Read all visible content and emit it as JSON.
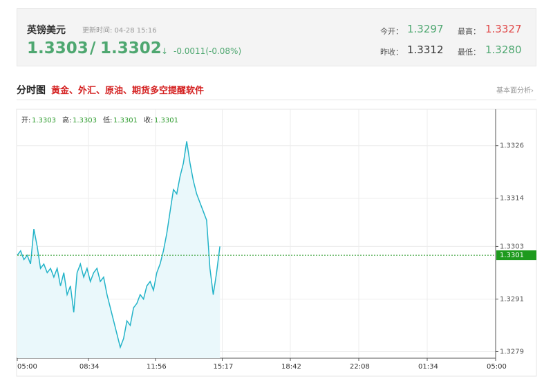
{
  "header": {
    "name": "英镑美元",
    "update_time": "更新时间: 04-28 15:16",
    "bid": "1.3303",
    "slash": "/",
    "ask": "1.3302",
    "arrow": "↓",
    "change": "-0.0011(-0.08%)",
    "stats": [
      {
        "label": "今开：",
        "value": "1.3297"
      },
      {
        "label": "最高：",
        "value": "1.3327"
      },
      {
        "label": "昨收：",
        "value": "1.3312"
      },
      {
        "label": "最低：",
        "value": "1.3280"
      }
    ]
  },
  "tabs": {
    "title": "分时图",
    "promo": "黄金、外汇、原油、期货多空提醒软件",
    "link": "基本面分析›"
  },
  "chart_data": {
    "type": "line",
    "ohlc": [
      {
        "label": "开:",
        "value": 1.3303
      },
      {
        "label": "高:",
        "value": 1.3303
      },
      {
        "label": "低:",
        "value": 1.3301
      },
      {
        "label": "收:",
        "value": 1.3301
      }
    ],
    "x": [
      "05:00",
      "05:10",
      "05:20",
      "05:30",
      "05:40",
      "05:50",
      "06:00",
      "06:10",
      "06:20",
      "06:30",
      "06:40",
      "06:50",
      "07:00",
      "07:10",
      "07:20",
      "07:30",
      "07:40",
      "07:50",
      "08:00",
      "08:10",
      "08:20",
      "08:30",
      "08:40",
      "08:50",
      "09:00",
      "09:10",
      "09:20",
      "09:30",
      "09:40",
      "09:50",
      "10:00",
      "10:10",
      "10:20",
      "10:30",
      "10:40",
      "10:50",
      "11:00",
      "11:10",
      "11:20",
      "11:30",
      "11:40",
      "11:50",
      "12:00",
      "12:10",
      "12:20",
      "12:30",
      "12:40",
      "12:50",
      "13:00",
      "13:10",
      "13:20",
      "13:30",
      "13:40",
      "13:50",
      "14:00",
      "14:10",
      "14:20",
      "14:30",
      "14:40",
      "14:50",
      "15:00",
      "15:10"
    ],
    "series": [
      {
        "name": "英镑美元",
        "color": "#22b3c8",
        "values": [
          1.3301,
          1.3302,
          1.33,
          1.3301,
          1.3299,
          1.3307,
          1.3303,
          1.3298,
          1.3299,
          1.3297,
          1.3298,
          1.3296,
          1.3298,
          1.3294,
          1.3297,
          1.3292,
          1.3294,
          1.3288,
          1.3297,
          1.3299,
          1.3296,
          1.3298,
          1.3295,
          1.3297,
          1.3298,
          1.3295,
          1.3296,
          1.3292,
          1.3289,
          1.3286,
          1.3283,
          1.328,
          1.3282,
          1.3286,
          1.3285,
          1.3289,
          1.329,
          1.3292,
          1.3291,
          1.3294,
          1.3295,
          1.3293,
          1.3297,
          1.3299,
          1.3302,
          1.3306,
          1.3311,
          1.3316,
          1.3315,
          1.3319,
          1.3322,
          1.3327,
          1.3322,
          1.3318,
          1.3315,
          1.3313,
          1.3311,
          1.3309,
          1.3298,
          1.3292,
          1.3297,
          1.3303
        ]
      }
    ],
    "last_price": 1.3301,
    "xticks": [
      "05:00",
      "08:34",
      "11:56",
      "15:17",
      "18:42",
      "22:08",
      "01:34",
      "05:00"
    ],
    "ylim": [
      1.32775,
      1.3334
    ],
    "yticks": [
      1.3326,
      1.3314,
      1.3303,
      1.3291,
      1.3279
    ],
    "grid": true
  }
}
